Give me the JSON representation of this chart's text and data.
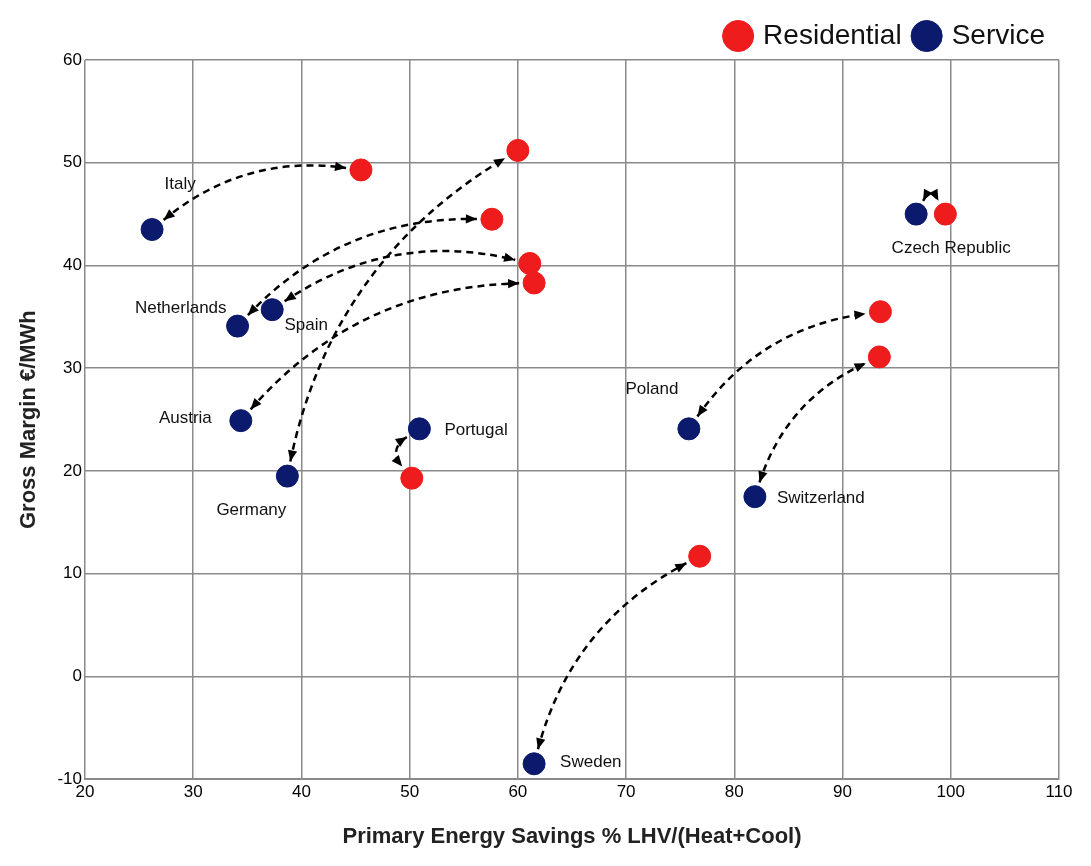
{
  "chart_data": {
    "type": "scatter",
    "xlabel": "Primary Energy Savings % LHV/(Heat+Cool)",
    "ylabel": "Gross Margin €/MWh",
    "xlim": [
      20,
      110
    ],
    "xticks": [
      20,
      30,
      40,
      50,
      60,
      70,
      80,
      90,
      100,
      110
    ],
    "ylim": [
      -10,
      60
    ],
    "yticks": [
      -10,
      0,
      10,
      20,
      30,
      40,
      50,
      60
    ],
    "grid": true,
    "legend": "top right",
    "marker": "circle",
    "series": [
      {
        "name": "Residential",
        "color": "#ee1c1c",
        "x": [
          45.5,
          57.6,
          61.1,
          61.5,
          60,
          50.2,
          93.5,
          93.4,
          76.8,
          99.5
        ],
        "values": [
          49.3,
          44.5,
          40.2,
          38.3,
          51.2,
          19.3,
          35.5,
          31.1,
          11.7,
          45
        ]
      },
      {
        "name": "Service",
        "color": "#0c1a6e",
        "x": [
          26.2,
          34.1,
          37.3,
          34.4,
          38.7,
          50.9,
          75.8,
          81.9,
          61.5,
          96.8
        ],
        "values": [
          43.5,
          34.1,
          35.7,
          24.9,
          19.5,
          24.1,
          24.1,
          17.5,
          -8.5,
          45
        ]
      }
    ],
    "annotations": [
      {
        "text": "Italy",
        "x": 26.2,
        "y": 43.5
      },
      {
        "text": "Netherlands",
        "x": 34.1,
        "y": 34.1
      },
      {
        "text": "Spain",
        "x": 37.3,
        "y": 35.7
      },
      {
        "text": "Austria",
        "x": 34.4,
        "y": 24.9
      },
      {
        "text": "Germany",
        "x": 38.7,
        "y": 19.5
      },
      {
        "text": "Portugal",
        "x": 50.9,
        "y": 24.1
      },
      {
        "text": "Poland",
        "x": 75.8,
        "y": 24.1
      },
      {
        "text": "Switzerland",
        "x": 81.9,
        "y": 17.5
      },
      {
        "text": "Sweden",
        "x": 61.5,
        "y": -8.5
      },
      {
        "text": "Czech Republic",
        "x": 96.8,
        "y": 45
      }
    ]
  }
}
